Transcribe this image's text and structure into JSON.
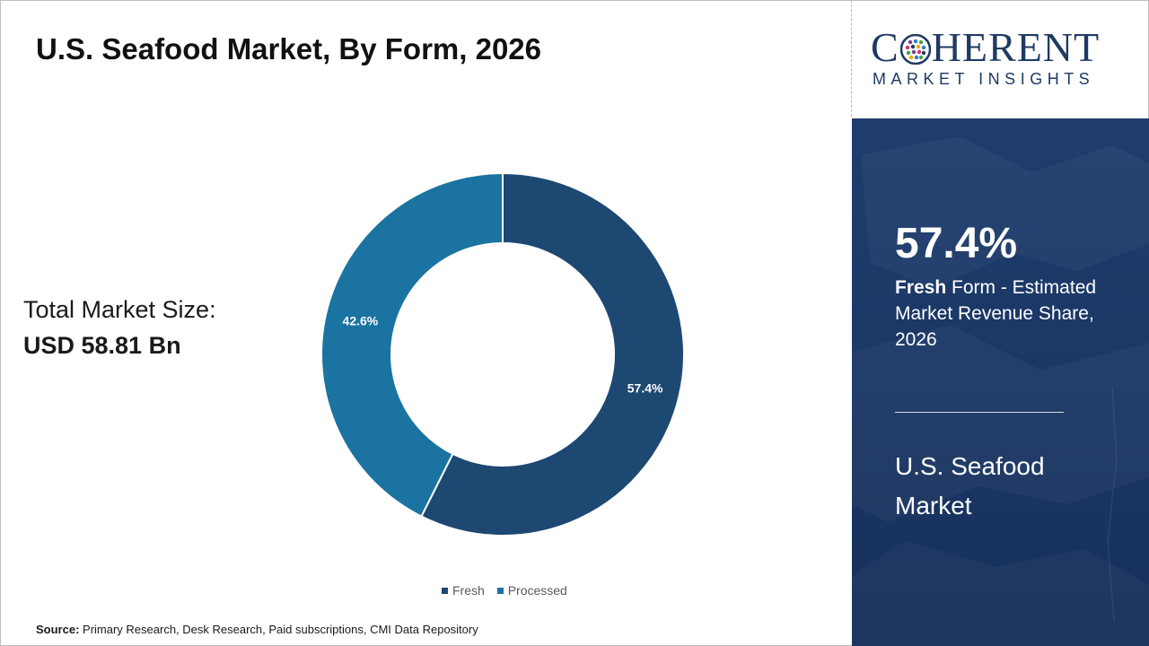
{
  "title": "U.S. Seafood Market, By Form, 2026",
  "total": {
    "label": "Total Market Size:",
    "value": "USD 58.81 Bn"
  },
  "chart_data": {
    "type": "pie",
    "style": "donut",
    "categories": [
      "Fresh",
      "Processed"
    ],
    "values": [
      57.4,
      42.6
    ],
    "labels": [
      "57.4%",
      "42.6%"
    ],
    "colors": [
      "#1d4872",
      "#1a73a0"
    ],
    "legend_position": "bottom"
  },
  "source": {
    "label": "Source:",
    "text": " Primary Research, Desk Research, Paid subscriptions, CMI Data Repository"
  },
  "logo": {
    "brand_pre": "C",
    "brand_post": "HERENT",
    "subtitle": "MARKET INSIGHTS"
  },
  "panel": {
    "stat": "57.4%",
    "stat_bold": "Fresh",
    "stat_desc": " Form - Estimated Market Revenue Share, 2026",
    "market": "U.S. Seafood Market"
  },
  "colors": {
    "panel_bg": "#1e3d6e",
    "accent_dark": "#1d4872",
    "accent_light": "#1a73a0",
    "logo_text": "#1f3a63"
  }
}
